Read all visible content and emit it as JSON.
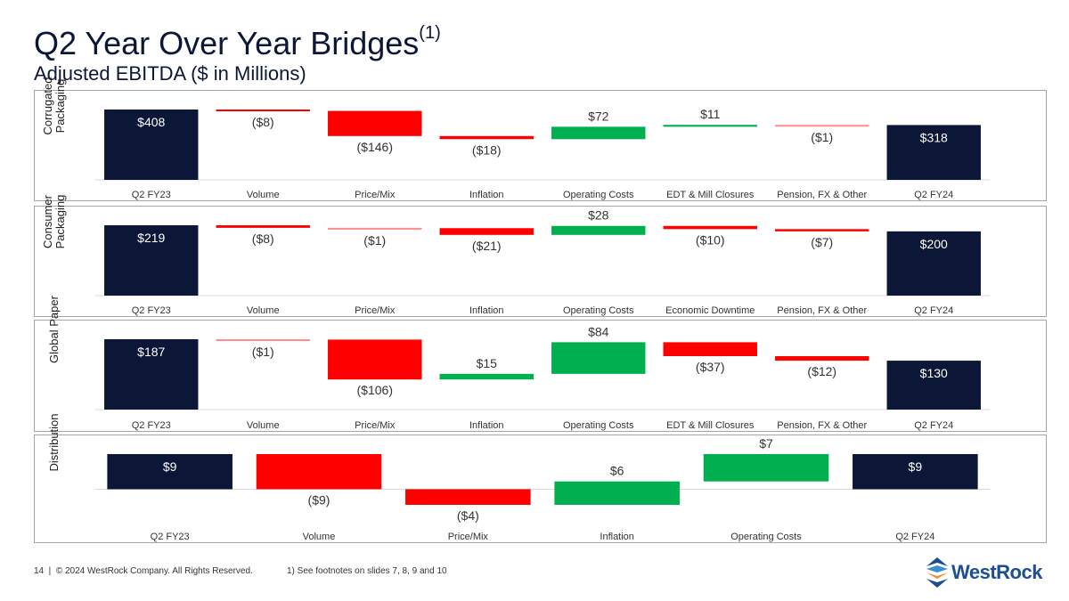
{
  "header": {
    "title": "Q2 Year Over Year Bridges",
    "title_sup": "(1)",
    "subtitle": "Adjusted EBITDA ($ in Millions)"
  },
  "colors": {
    "total": "#0c1738",
    "decrease": "#ff0000",
    "increase": "#00b050",
    "text": "#333333"
  },
  "chart_data": [
    {
      "type": "waterfall",
      "segment": "Corrugated Packaging",
      "categories": [
        "Q2 FY23",
        "Volume",
        "Price/Mix",
        "Inflation",
        "Operating Costs",
        "EDT & Mill Closures",
        "Pension, FX & Other",
        "Q2 FY24"
      ],
      "values": [
        408,
        -8,
        -146,
        -18,
        72,
        11,
        -1,
        318
      ],
      "labels": [
        "$408",
        "($8)",
        "($146)",
        "($18)",
        "$72",
        "$11",
        "($1)",
        "$318"
      ],
      "kinds": [
        "total",
        "delta",
        "delta",
        "delta",
        "delta",
        "delta",
        "delta",
        "total"
      ]
    },
    {
      "type": "waterfall",
      "segment": "Consumer Packaging",
      "categories": [
        "Q2 FY23",
        "Volume",
        "Price/Mix",
        "Inflation",
        "Operating Costs",
        "Economic Downtime",
        "Pension, FX & Other",
        "Q2 FY24"
      ],
      "values": [
        219,
        -8,
        -1,
        -21,
        28,
        -10,
        -7,
        200
      ],
      "labels": [
        "$219",
        "($8)",
        "($1)",
        "($21)",
        "$28",
        "($10)",
        "($7)",
        "$200"
      ],
      "kinds": [
        "total",
        "delta",
        "delta",
        "delta",
        "delta",
        "delta",
        "delta",
        "total"
      ]
    },
    {
      "type": "waterfall",
      "segment": "Global Paper",
      "categories": [
        "Q2 FY23",
        "Volume",
        "Price/Mix",
        "Inflation",
        "Operating Costs",
        "EDT & Mill Closures",
        "Pension, FX & Other",
        "Q2 FY24"
      ],
      "values": [
        187,
        -1,
        -106,
        15,
        84,
        -37,
        -12,
        130
      ],
      "labels": [
        "$187",
        "($1)",
        "($106)",
        "$15",
        "$84",
        "($37)",
        "($12)",
        "$130"
      ],
      "kinds": [
        "total",
        "delta",
        "delta",
        "delta",
        "delta",
        "delta",
        "delta",
        "total"
      ]
    },
    {
      "type": "waterfall",
      "segment": "Distribution",
      "categories": [
        "Q2 FY23",
        "Volume",
        "Price/Mix",
        "Inflation",
        "Operating Costs",
        "Q2 FY24"
      ],
      "values": [
        9,
        -9,
        -4,
        6,
        7,
        9
      ],
      "labels": [
        "$9",
        "($9)",
        "($4)",
        "$6",
        "$7",
        "$9"
      ],
      "kinds": [
        "total",
        "delta",
        "delta",
        "delta",
        "delta",
        "total"
      ]
    }
  ],
  "footer": {
    "page": "14",
    "copyright": "© 2024 WestRock Company. All Rights Reserved.",
    "footnote": "1) See footnotes on slides 7, 8, 9 and 10"
  },
  "logo": {
    "text": "WestRock"
  }
}
